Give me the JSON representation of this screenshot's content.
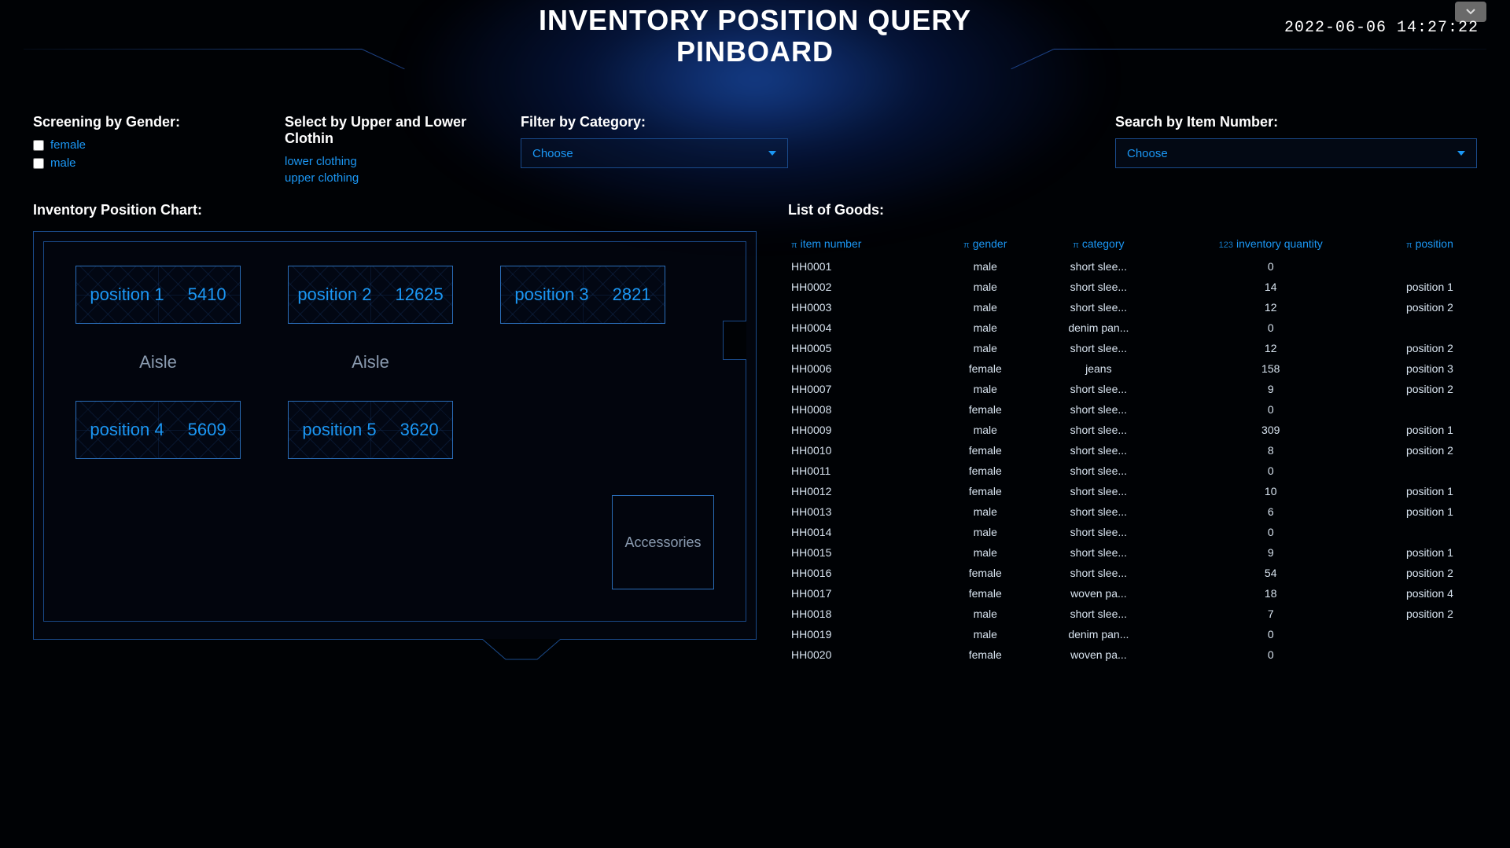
{
  "header": {
    "title_line1": "INVENTORY POSITION QUERY",
    "title_line2": "PINBOARD",
    "timestamp": "2022-06-06 14:27:22"
  },
  "filters": {
    "gender": {
      "label": "Screening by Gender:",
      "options": [
        {
          "label": "female",
          "checked": false
        },
        {
          "label": "male",
          "checked": false
        }
      ]
    },
    "clothing": {
      "label": "Select by Upper and Lower Clothin",
      "options": [
        "lower clothing",
        "upper clothing"
      ]
    },
    "category": {
      "label": "Filter by Category:",
      "placeholder": "Choose"
    },
    "item_number": {
      "label": "Search by Item Number:",
      "placeholder": "Choose"
    }
  },
  "chart": {
    "label": "Inventory Position Chart:",
    "aisle_label": "Aisle",
    "accessories_label": "Accessories",
    "positions": [
      {
        "name": "position 1",
        "value": 5410
      },
      {
        "name": "position 2",
        "value": 12625
      },
      {
        "name": "position 3",
        "value": 2821
      },
      {
        "name": "position 4",
        "value": 5609
      },
      {
        "name": "position 5",
        "value": 3620
      }
    ],
    "colors": {
      "border": "#1a4a8a",
      "box_border": "#2a6db8",
      "text": "#1b97f4",
      "muted": "#8a9bb0",
      "background": "#000205"
    }
  },
  "goods": {
    "label": "List of Goods:",
    "columns": [
      {
        "icon": "π",
        "label": "item number"
      },
      {
        "icon": "π",
        "label": "gender"
      },
      {
        "icon": "π",
        "label": "category"
      },
      {
        "icon": "123",
        "label": "inventory quantity"
      },
      {
        "icon": "π",
        "label": "position"
      }
    ],
    "rows": [
      [
        "HH0001",
        "male",
        "short slee...",
        "0",
        ""
      ],
      [
        "HH0002",
        "male",
        "short slee...",
        "14",
        "position 1"
      ],
      [
        "HH0003",
        "male",
        "short slee...",
        "12",
        "position 2"
      ],
      [
        "HH0004",
        "male",
        "denim pan...",
        "0",
        ""
      ],
      [
        "HH0005",
        "male",
        "short slee...",
        "12",
        "position 2"
      ],
      [
        "HH0006",
        "female",
        "jeans",
        "158",
        "position 3"
      ],
      [
        "HH0007",
        "male",
        "short slee...",
        "9",
        "position 2"
      ],
      [
        "HH0008",
        "female",
        "short slee...",
        "0",
        ""
      ],
      [
        "HH0009",
        "male",
        "short slee...",
        "309",
        "position 1"
      ],
      [
        "HH0010",
        "female",
        "short slee...",
        "8",
        "position 2"
      ],
      [
        "HH0011",
        "female",
        "short slee...",
        "0",
        ""
      ],
      [
        "HH0012",
        "female",
        "short slee...",
        "10",
        "position 1"
      ],
      [
        "HH0013",
        "male",
        "short slee...",
        "6",
        "position 1"
      ],
      [
        "HH0014",
        "male",
        "short slee...",
        "0",
        ""
      ],
      [
        "HH0015",
        "male",
        "short slee...",
        "9",
        "position 1"
      ],
      [
        "HH0016",
        "female",
        "short slee...",
        "54",
        "position 2"
      ],
      [
        "HH0017",
        "female",
        "woven pa...",
        "18",
        "position 4"
      ],
      [
        "HH0018",
        "male",
        "short slee...",
        "7",
        "position 2"
      ],
      [
        "HH0019",
        "male",
        "denim pan...",
        "0",
        ""
      ],
      [
        "HH0020",
        "female",
        "woven pa...",
        "0",
        ""
      ]
    ]
  }
}
